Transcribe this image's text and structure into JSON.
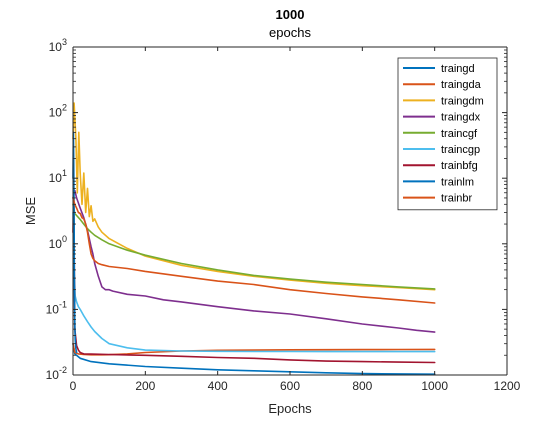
{
  "chart_data": {
    "type": "line",
    "title": "1000",
    "subtitle": "epochs",
    "xlabel": "Epochs",
    "ylabel": "MSE",
    "xlim": [
      0,
      1200
    ],
    "ylim": [
      0.01,
      1000
    ],
    "yscale": "log",
    "x_ticks": [
      0,
      200,
      400,
      600,
      800,
      1000,
      1200
    ],
    "x_tick_labels": [
      "0",
      "200",
      "400",
      "600",
      "800",
      "1000",
      "1200"
    ],
    "y_tick_labels": [
      {
        "value": 0.01,
        "base": "10",
        "exp": "-2"
      },
      {
        "value": 0.1,
        "base": "10",
        "exp": "-1"
      },
      {
        "value": 1,
        "base": "10",
        "exp": "0"
      },
      {
        "value": 10,
        "base": "10",
        "exp": "1"
      },
      {
        "value": 100,
        "base": "10",
        "exp": "2"
      },
      {
        "value": 1000,
        "base": "10",
        "exp": "3"
      }
    ],
    "grid": false,
    "legend_position": "top-right",
    "series": [
      {
        "name": "traingd",
        "color": "#0072BD",
        "x": [
          0,
          5,
          20,
          50,
          100,
          200,
          300,
          400,
          500,
          600,
          700,
          800,
          900,
          1000
        ],
        "y": [
          0.03,
          0.021,
          0.018,
          0.016,
          0.0148,
          0.0135,
          0.0127,
          0.012,
          0.0116,
          0.0112,
          0.0108,
          0.0105,
          0.0104,
          0.0103
        ]
      },
      {
        "name": "traingda",
        "color": "#D95319",
        "x": [
          0,
          5,
          15,
          30,
          50,
          80,
          100,
          150,
          200,
          300,
          400,
          500,
          600,
          700,
          800,
          900,
          1000
        ],
        "y": [
          0.03,
          0.022,
          0.021,
          0.0205,
          0.0203,
          0.0203,
          0.0204,
          0.021,
          0.022,
          0.0232,
          0.0238,
          0.024,
          0.0242,
          0.0243,
          0.0244,
          0.0245,
          0.0246
        ]
      },
      {
        "name": "traingdm",
        "color": "#EDB120",
        "x": [
          0,
          3,
          8,
          12,
          16,
          20,
          25,
          30,
          35,
          40,
          45,
          50,
          55,
          60,
          70,
          80,
          100,
          150,
          200,
          300,
          400,
          500,
          600,
          700,
          800,
          900,
          1000
        ],
        "y": [
          40,
          140,
          40,
          6,
          50,
          12,
          4,
          12,
          3,
          7,
          2.6,
          3.8,
          2.2,
          2.4,
          1.8,
          1.5,
          1.2,
          0.85,
          0.65,
          0.47,
          0.38,
          0.32,
          0.28,
          0.25,
          0.23,
          0.215,
          0.2
        ]
      },
      {
        "name": "traingdx",
        "color": "#7E2F8E",
        "x": [
          0,
          5,
          10,
          20,
          30,
          40,
          50,
          55,
          60,
          70,
          80,
          90,
          100,
          110,
          150,
          200,
          250,
          300,
          400,
          500,
          600,
          700,
          800,
          900,
          950,
          1000
        ],
        "y": [
          5,
          6.5,
          5,
          3.5,
          2.5,
          1.6,
          0.9,
          0.7,
          0.5,
          0.32,
          0.22,
          0.2,
          0.2,
          0.19,
          0.17,
          0.16,
          0.14,
          0.13,
          0.11,
          0.095,
          0.085,
          0.072,
          0.06,
          0.052,
          0.048,
          0.045
        ]
      },
      {
        "name": "traincgf",
        "color": "#77AC30",
        "x": [
          0,
          5,
          10,
          20,
          30,
          40,
          50,
          60,
          80,
          100,
          150,
          200,
          300,
          400,
          500,
          600,
          700,
          800,
          900,
          1000
        ],
        "y": [
          4,
          2.9,
          2.7,
          2.35,
          2.0,
          1.7,
          1.5,
          1.35,
          1.15,
          1.0,
          0.8,
          0.67,
          0.5,
          0.4,
          0.33,
          0.29,
          0.26,
          0.24,
          0.22,
          0.205
        ]
      },
      {
        "name": "traincgp",
        "color": "#4DBEEE",
        "x": [
          0,
          3,
          6,
          10,
          15,
          20,
          30,
          40,
          50,
          60,
          80,
          100,
          150,
          200,
          300,
          400,
          500,
          600,
          700,
          800,
          900,
          1000
        ],
        "y": [
          3,
          0.4,
          0.16,
          0.13,
          0.11,
          0.1,
          0.08,
          0.065,
          0.054,
          0.046,
          0.036,
          0.03,
          0.026,
          0.024,
          0.0232,
          0.023,
          0.0228,
          0.0228,
          0.0227,
          0.0227,
          0.0227,
          0.0227
        ]
      },
      {
        "name": "trainbfg",
        "color": "#A2142F",
        "x": [
          0,
          2,
          5,
          10,
          15,
          20,
          25,
          30,
          50,
          100,
          200,
          300,
          400,
          500,
          600,
          700,
          800,
          900,
          1000
        ],
        "y": [
          1.5,
          6,
          0.05,
          0.028,
          0.024,
          0.022,
          0.0215,
          0.021,
          0.0208,
          0.0205,
          0.02,
          0.0193,
          0.0185,
          0.018,
          0.017,
          0.0163,
          0.016,
          0.0157,
          0.0155
        ]
      },
      {
        "name": "trainlm",
        "color": "#0072BD",
        "x": [
          0,
          1,
          2,
          3,
          4,
          5,
          6,
          8,
          10
        ],
        "y": [
          10,
          50,
          20,
          3,
          0.2,
          0.06,
          0.035,
          0.025,
          0.022
        ]
      },
      {
        "name": "trainbr",
        "color": "#D95319",
        "x": [
          0,
          5,
          10,
          15,
          20,
          25,
          30,
          35,
          40,
          45,
          50,
          55,
          60,
          70,
          80,
          100,
          150,
          200,
          300,
          400,
          500,
          600,
          700,
          800,
          900,
          1000
        ],
        "y": [
          5,
          4,
          3.5,
          3.0,
          2.9,
          2.5,
          2.4,
          2.0,
          1.5,
          1.0,
          0.7,
          0.6,
          0.55,
          0.5,
          0.48,
          0.45,
          0.42,
          0.38,
          0.32,
          0.27,
          0.24,
          0.2,
          0.175,
          0.155,
          0.14,
          0.125
        ]
      }
    ]
  }
}
